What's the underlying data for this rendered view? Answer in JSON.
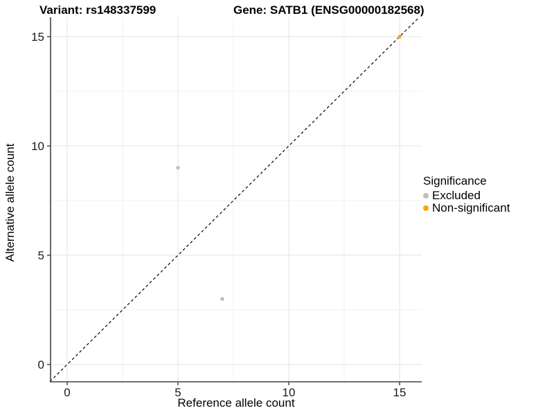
{
  "chart_data": {
    "type": "scatter",
    "title_left": "Variant: rs148337599",
    "title_right": "Gene: SATB1 (ENSG00000182568)",
    "xlabel": "Reference allele count",
    "ylabel": "Alternative allele count",
    "xlim": [
      -0.78,
      16.05
    ],
    "ylim": [
      -0.79,
      15.89
    ],
    "x_ticks": [
      0,
      5,
      10,
      15
    ],
    "y_ticks": [
      0,
      5,
      10,
      15
    ],
    "x_minor_ticks": [
      2.5,
      7.5,
      12.5
    ],
    "y_minor_ticks": [
      2.5,
      7.5,
      12.5
    ],
    "grid": "major and minor gridlines on white panel",
    "identity_line": {
      "type": "y=x",
      "style": "dashed",
      "color": "#000000"
    },
    "legend": {
      "title": "Significance",
      "position": "right"
    },
    "series": [
      {
        "name": "Excluded",
        "color": "#BEBEBE",
        "points": [
          [
            5,
            9
          ],
          [
            7,
            3
          ]
        ]
      },
      {
        "name": "Non-significant",
        "color": "#FFA500",
        "points": [
          [
            15,
            15
          ]
        ]
      }
    ]
  },
  "colors": {
    "background": "#FFFFFF",
    "grid_major": "#E3E3E3",
    "grid_minor": "#F1F1F1",
    "axis_line": "#404040",
    "text": "#1A1A1A",
    "excluded": "#BEBEBE",
    "non_significant": "#FFA500"
  }
}
